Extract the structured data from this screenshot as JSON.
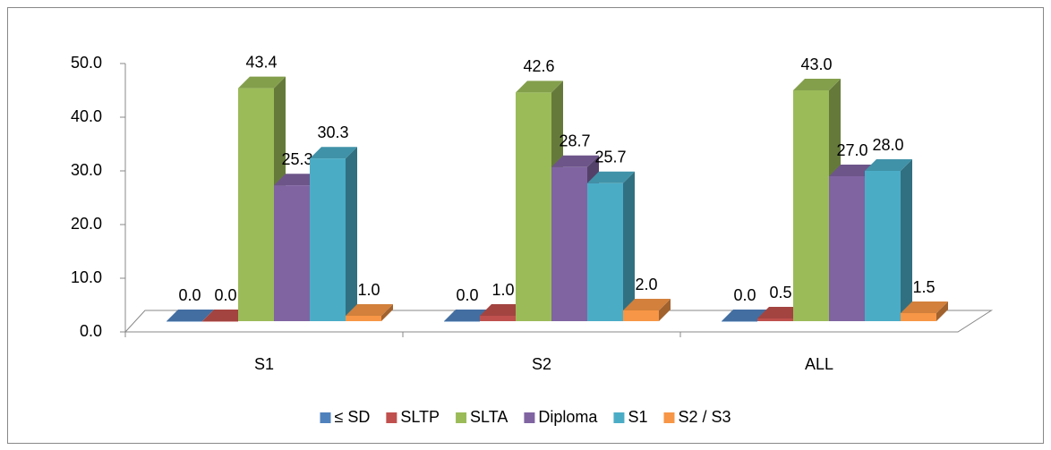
{
  "chart_data": {
    "type": "bar",
    "categories": [
      "S1",
      "S2",
      "ALL"
    ],
    "series": [
      {
        "name": "≤ SD",
        "color": "#4f81bd",
        "values": [
          0,
          0,
          0
        ],
        "value_labels": [
          "0.0",
          "0.0",
          "0.0"
        ]
      },
      {
        "name": "SLTP",
        "color": "#c0504d",
        "values": [
          0,
          1,
          0.5
        ],
        "value_labels": [
          "0.0",
          "1.0",
          "0.5"
        ]
      },
      {
        "name": "SLTA",
        "color": "#9bbb59",
        "values": [
          43.4,
          42.6,
          43
        ],
        "value_labels": [
          "43.4",
          "42.6",
          "43.0"
        ]
      },
      {
        "name": "Diploma",
        "color": "#8064a2",
        "values": [
          25.3,
          28.7,
          27
        ],
        "value_labels": [
          "25.3",
          "28.7",
          "27.0"
        ]
      },
      {
        "name": "S1",
        "color": "#4bacc6",
        "values": [
          30.3,
          25.7,
          28
        ],
        "value_labels": [
          "30.3",
          "25.7",
          "28.0"
        ]
      },
      {
        "name": "S2 / S3",
        "color": "#f79646",
        "values": [
          1,
          2,
          1.5
        ],
        "value_labels": [
          "1.0",
          "2.0",
          "1.5"
        ]
      }
    ],
    "ylim": [
      0,
      50
    ],
    "yticks": [
      {
        "value": 0,
        "label": "0.0"
      },
      {
        "value": 10,
        "label": "10.0"
      },
      {
        "value": 20,
        "label": "20.0"
      },
      {
        "value": 30,
        "label": "30.0"
      },
      {
        "value": 40,
        "label": "40.0"
      },
      {
        "value": 50,
        "label": "50.0"
      }
    ],
    "legend": "bottom"
  }
}
